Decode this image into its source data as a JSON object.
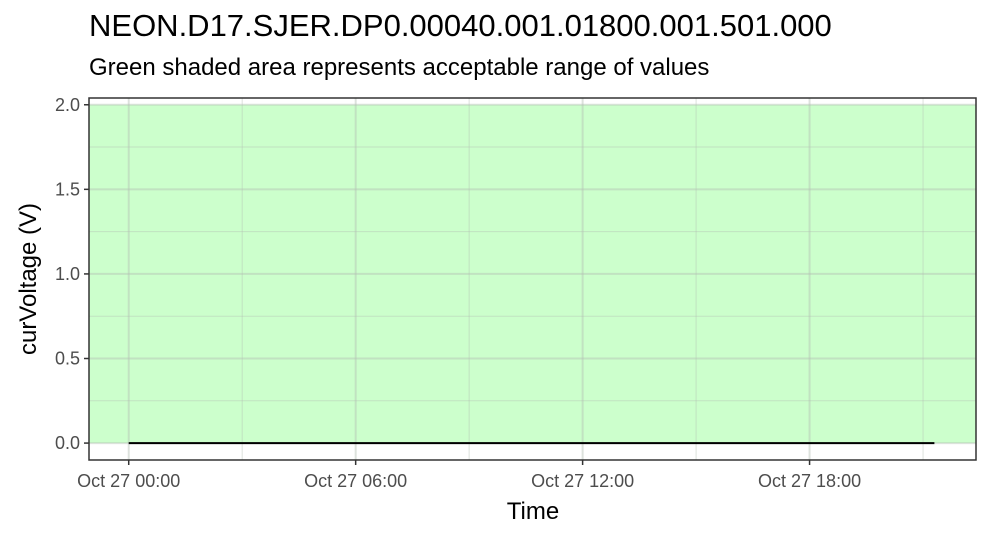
{
  "chart_data": {
    "type": "line",
    "title": "NEON.D17.SJER.DP0.00040.001.01800.001.501.000",
    "subtitle": "Green shaded area represents acceptable range of values",
    "xlabel": "Time",
    "ylabel": "curVoltage (V)",
    "ylim": [
      -0.1,
      2.04
    ],
    "y_ticks": [
      0.0,
      0.5,
      1.0,
      1.5,
      2.0
    ],
    "y_tick_labels": [
      "0.0",
      "0.5",
      "1.0",
      "1.5",
      "2.0"
    ],
    "x_ticks_hours": [
      0,
      6,
      12,
      18
    ],
    "x_tick_labels": [
      "Oct 27 00:00",
      "Oct 27 06:00",
      "Oct 27 12:00",
      "Oct 27 18:00"
    ],
    "x_range_hours": [
      -1.05,
      22.4
    ],
    "acceptable_range": {
      "ymin": 0.0,
      "ymax": 2.0,
      "color": "#ccffcc"
    },
    "series": [
      {
        "x_hours": [
          0.0,
          21.3
        ],
        "values": [
          0.0,
          0.0
        ],
        "color": "#000000"
      }
    ],
    "grid": true,
    "legend": "none"
  }
}
